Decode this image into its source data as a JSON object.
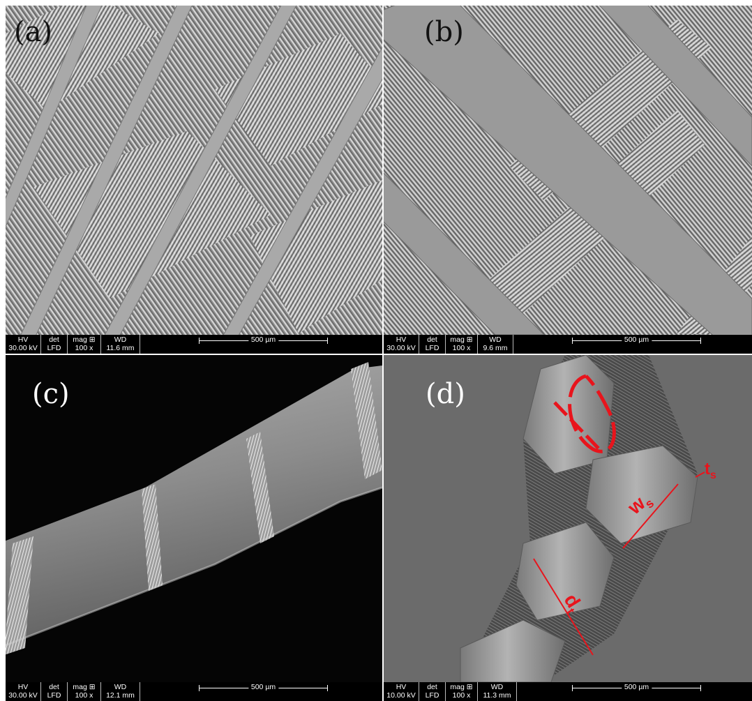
{
  "panels": [
    {
      "label": "(a)",
      "databar": {
        "hv_header": "HV",
        "hv_value": "30.00 kV",
        "det_header": "det",
        "det_value": "LFD",
        "mag_header": "mag ⊞",
        "mag_value": "100 x",
        "wd_header": "WD",
        "wd_value": "11.6 mm",
        "scale_text": "500 µm"
      }
    },
    {
      "label": "(b)",
      "databar": {
        "hv_header": "HV",
        "hv_value": "30.00 kV",
        "det_header": "det",
        "det_value": "LFD",
        "mag_header": "mag ⊞",
        "mag_value": "100 x",
        "wd_header": "WD",
        "wd_value": "9.6 mm",
        "scale_text": "500 µm"
      }
    },
    {
      "label": "(c)",
      "databar": {
        "hv_header": "HV",
        "hv_value": "30.00 kV",
        "det_header": "det",
        "det_value": "LFD",
        "mag_header": "mag ⊞",
        "mag_value": "100 x",
        "wd_header": "WD",
        "wd_value": "12.1 mm",
        "scale_text": "500 µm"
      }
    },
    {
      "label": "(d)",
      "databar": {
        "hv_header": "HV",
        "hv_value": "10.00 kV",
        "det_header": "det",
        "det_value": "LFD",
        "mag_header": "mag ⊞",
        "mag_value": "100 x",
        "wd_header": "WD",
        "wd_value": "11.3 mm",
        "scale_text": "500 µm"
      },
      "annotations": {
        "ws_main": "w",
        "ws_sub": "s",
        "ts_main": "t",
        "ts_sub": "s",
        "dt_main": "d",
        "dt_sub": "t"
      }
    }
  ],
  "colors": {
    "annotation": "#e8141c"
  }
}
